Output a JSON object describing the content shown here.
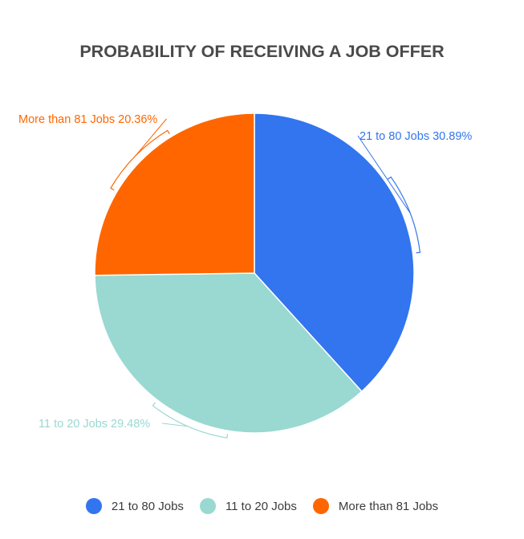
{
  "chart_data": {
    "type": "pie",
    "title": "PROBABILITY OF RECEIVING A JOB OFFER",
    "slices": [
      {
        "name": "21 to 80 Jobs",
        "value": 30.89,
        "label": "21 to 80 Jobs 30.89%",
        "color": "#3275ee"
      },
      {
        "name": "11 to 20 Jobs",
        "value": 29.48,
        "label": "11 to 20 Jobs 29.48%",
        "color": "#9ad8d2"
      },
      {
        "name": "More than 81 Jobs",
        "value": 20.36,
        "label": "More than 81 Jobs 20.36%",
        "color": "#ff6600"
      }
    ],
    "legend": {
      "position": "bottom",
      "entries": [
        "21 to 80 Jobs",
        "11 to 20 Jobs",
        "More than 81 Jobs"
      ]
    }
  }
}
